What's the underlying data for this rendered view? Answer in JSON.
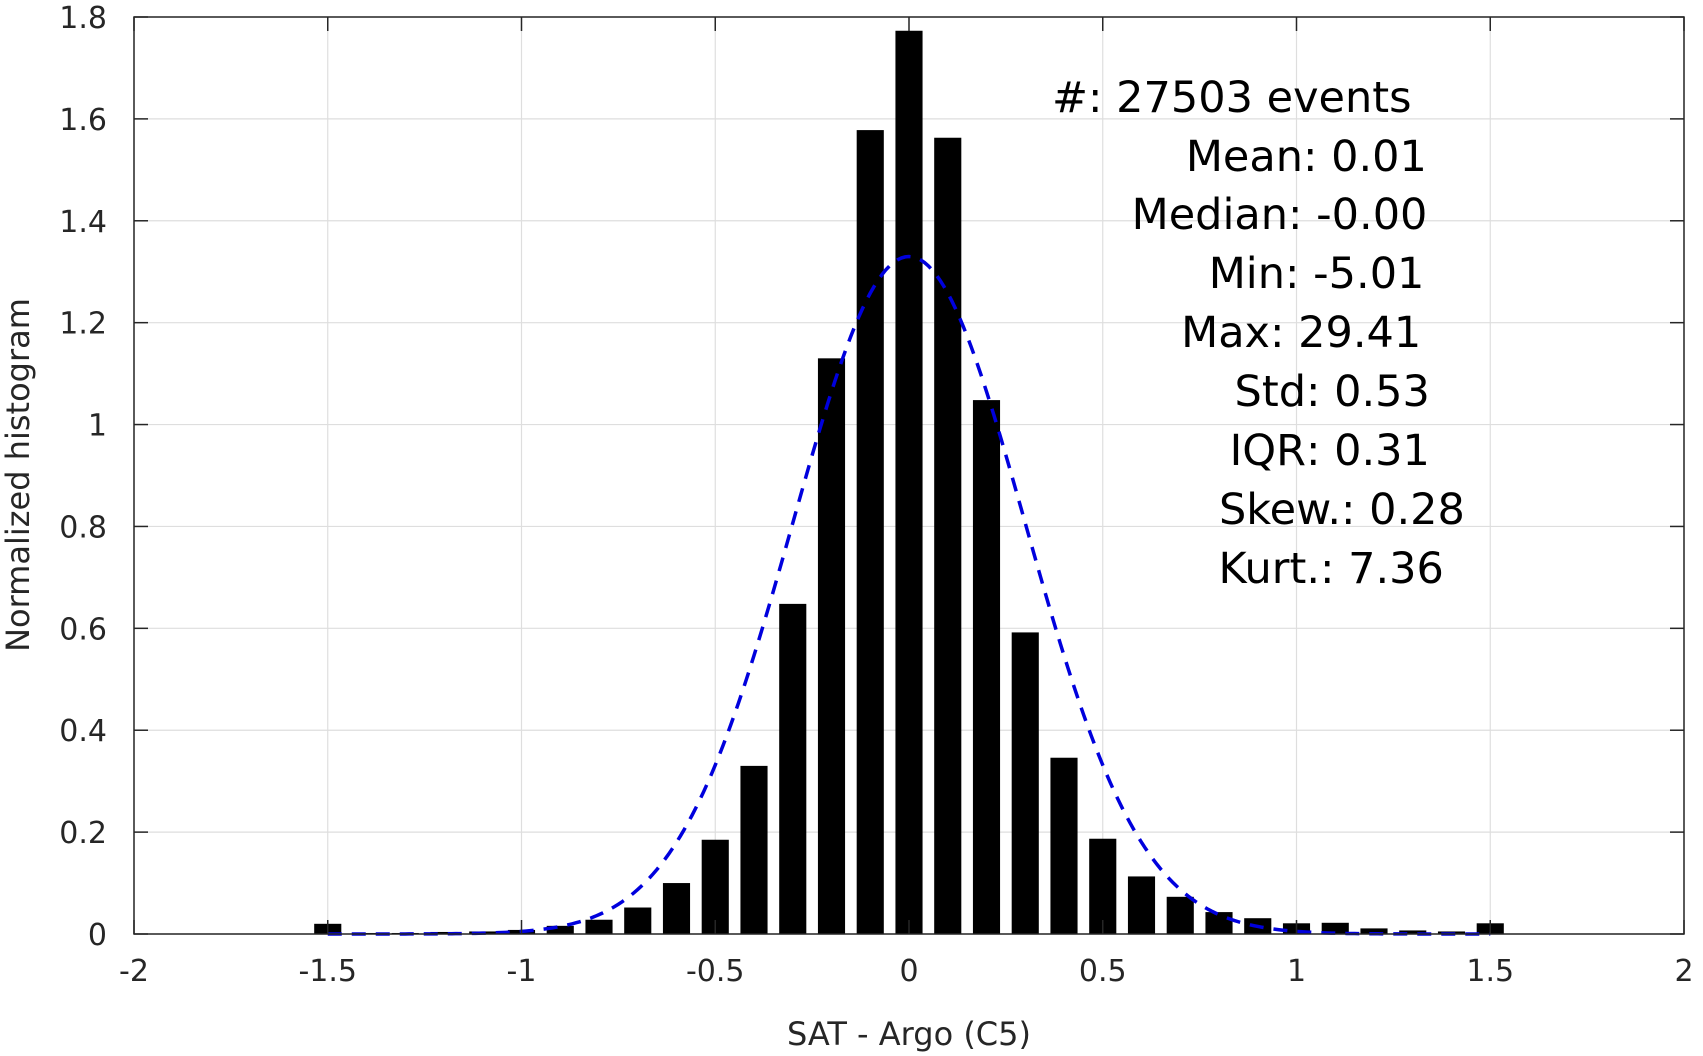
{
  "chart_data": {
    "type": "bar",
    "xlabel": "SAT - Argo (C5)",
    "ylabel": "Normalized histogram",
    "xlim": [
      -2,
      2
    ],
    "ylim": [
      0,
      1.8
    ],
    "xticks": [
      -2,
      -1.5,
      -1,
      -0.5,
      0,
      0.5,
      1,
      1.5,
      2
    ],
    "xtick_labels": [
      "-2",
      "-1.5",
      "-1",
      "-0.5",
      "0",
      "0.5",
      "1",
      "1.5",
      "2"
    ],
    "yticks": [
      0,
      0.2,
      0.4,
      0.6,
      0.8,
      1,
      1.2,
      1.4,
      1.6,
      1.8
    ],
    "ytick_labels": [
      "0",
      "0.2",
      "0.4",
      "0.6",
      "0.8",
      "1",
      "1.2",
      "1.4",
      "1.6",
      "1.8"
    ],
    "grid": true,
    "bar_color": "#000000",
    "bar_width": 0.07,
    "x": [
      -1.5,
      -1.4,
      -1.3,
      -1.2,
      -1.1,
      -1.0,
      -0.9,
      -0.8,
      -0.7,
      -0.6,
      -0.5,
      -0.4,
      -0.3,
      -0.2,
      -0.1,
      0.0,
      0.1,
      0.2,
      0.3,
      0.4,
      0.5,
      0.6,
      0.7,
      0.8,
      0.9,
      1.0,
      1.1,
      1.2,
      1.3,
      1.4,
      1.5
    ],
    "values": [
      0.02,
      0.002,
      0.002,
      0.004,
      0.005,
      0.008,
      0.016,
      0.028,
      0.052,
      0.1,
      0.185,
      0.33,
      0.648,
      1.13,
      1.578,
      1.773,
      1.563,
      1.048,
      0.592,
      0.346,
      0.187,
      0.113,
      0.073,
      0.043,
      0.031,
      0.021,
      0.022,
      0.011,
      0.007,
      0.005,
      0.021
    ],
    "fit": {
      "type": "normal",
      "style": "dashed",
      "color": "#0000dd",
      "mean": 0.0,
      "std": 0.3,
      "x_range": [
        -1.5,
        1.5
      ]
    },
    "annotations": [
      {
        "label": "#",
        "sep": " : ",
        "value": "27503 events"
      },
      {
        "label": "Mean",
        "sep": " : ",
        "value": "0.01"
      },
      {
        "label": "Median",
        "sep": " : ",
        "value": "-0.00"
      },
      {
        "label": "Min",
        "sep": " : ",
        "value": "-5.01"
      },
      {
        "label": "Max",
        "sep": " : ",
        "value": "29.41"
      },
      {
        "label": "Std",
        "sep": " : ",
        "value": "0.53"
      },
      {
        "label": "IQR",
        "sep": " : ",
        "value": "0.31"
      },
      {
        "label": "Skew.",
        "sep": " : ",
        "value": "0.28"
      },
      {
        "label": "Kurt.",
        "sep": " : ",
        "value": "7.36"
      }
    ]
  }
}
